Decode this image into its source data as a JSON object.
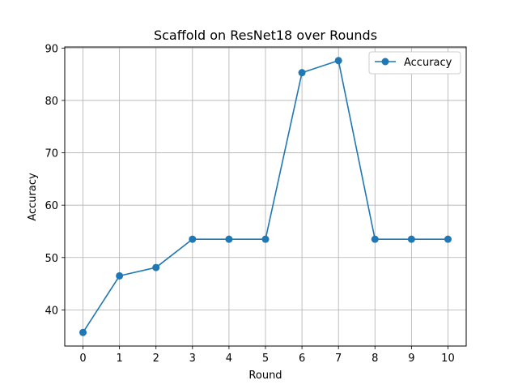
{
  "chart_data": {
    "type": "line",
    "title": "Scaffold on ResNet18 over Rounds",
    "xlabel": "Round",
    "ylabel": "Accuracy",
    "x": [
      0,
      1,
      2,
      3,
      4,
      5,
      6,
      7,
      8,
      9,
      10
    ],
    "xticks": [
      "0",
      "1",
      "2",
      "3",
      "4",
      "5",
      "6",
      "7",
      "8",
      "9",
      "10"
    ],
    "yticks": [
      "40",
      "50",
      "60",
      "70",
      "80",
      "90"
    ],
    "ylim": [
      33.1,
      90.2
    ],
    "xlim": [
      -0.5,
      10.5
    ],
    "grid": true,
    "legend_position": "top-right",
    "series": [
      {
        "name": "Accuracy",
        "color": "#1f77b4",
        "marker": "circle",
        "values": [
          35.7,
          46.5,
          48.1,
          53.5,
          53.5,
          53.5,
          85.3,
          87.6,
          53.5,
          53.5,
          53.5
        ]
      }
    ]
  }
}
